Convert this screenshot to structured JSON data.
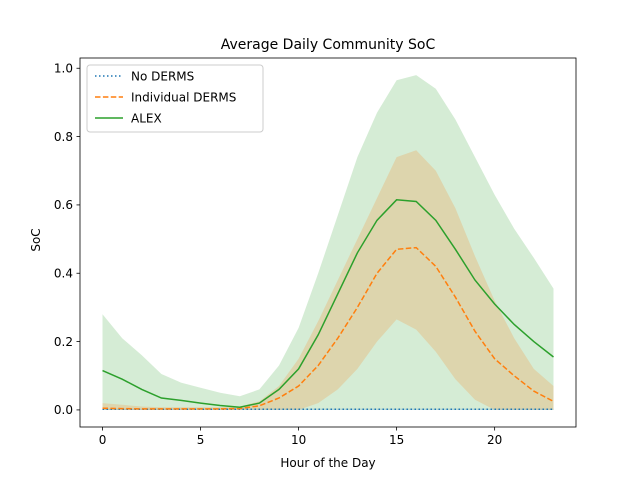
{
  "chart_data": {
    "type": "line",
    "title": "Average Daily Community SoC",
    "xlabel": "Hour of the Day",
    "ylabel": "SoC",
    "xlim": [
      -1.15,
      24.15
    ],
    "ylim": [
      -0.05,
      1.03
    ],
    "xticks": [
      0,
      5,
      10,
      15,
      20
    ],
    "xtick_labels": [
      "0",
      "5",
      "10",
      "15",
      "20"
    ],
    "yticks": [
      0.0,
      0.2,
      0.4,
      0.6,
      0.8,
      1.0
    ],
    "ytick_labels": [
      "0.0",
      "0.2",
      "0.4",
      "0.6",
      "0.8",
      "1.0"
    ],
    "legend_position": "top-left",
    "x": [
      0,
      1,
      2,
      3,
      4,
      5,
      6,
      7,
      8,
      9,
      10,
      11,
      12,
      13,
      14,
      15,
      16,
      17,
      18,
      19,
      20,
      21,
      22,
      23
    ],
    "series": [
      {
        "name": "No DERMS",
        "color": "#1f77b4",
        "style": "dotted",
        "values": [
          0.002,
          0.002,
          0.002,
          0.002,
          0.002,
          0.002,
          0.002,
          0.002,
          0.002,
          0.002,
          0.002,
          0.002,
          0.002,
          0.002,
          0.002,
          0.002,
          0.002,
          0.002,
          0.002,
          0.002,
          0.002,
          0.002,
          0.002,
          0.002
        ],
        "band_lower": [
          0,
          0,
          0,
          0,
          0,
          0,
          0,
          0,
          0,
          0,
          0,
          0,
          0,
          0,
          0,
          0,
          0,
          0,
          0,
          0,
          0,
          0,
          0,
          0
        ],
        "band_upper": [
          0.004,
          0.004,
          0.004,
          0.004,
          0.004,
          0.004,
          0.004,
          0.004,
          0.004,
          0.004,
          0.004,
          0.004,
          0.004,
          0.004,
          0.004,
          0.004,
          0.004,
          0.004,
          0.004,
          0.004,
          0.004,
          0.004,
          0.004,
          0.004
        ]
      },
      {
        "name": "Individual DERMS",
        "color": "#ff7f0e",
        "style": "dashed",
        "values": [
          0.005,
          0.004,
          0.003,
          0.003,
          0.003,
          0.003,
          0.003,
          0.004,
          0.012,
          0.035,
          0.07,
          0.13,
          0.21,
          0.3,
          0.4,
          0.47,
          0.475,
          0.42,
          0.33,
          0.23,
          0.15,
          0.1,
          0.055,
          0.025
        ],
        "band_lower": [
          0,
          0,
          0,
          0,
          0,
          0,
          0,
          0,
          0,
          0,
          0,
          0.02,
          0.06,
          0.12,
          0.2,
          0.265,
          0.235,
          0.17,
          0.09,
          0.03,
          0,
          0,
          0,
          0
        ],
        "band_upper": [
          0.02,
          0.015,
          0.01,
          0.008,
          0.008,
          0.008,
          0.008,
          0.01,
          0.025,
          0.07,
          0.15,
          0.26,
          0.38,
          0.5,
          0.62,
          0.74,
          0.76,
          0.7,
          0.59,
          0.45,
          0.32,
          0.21,
          0.12,
          0.07
        ]
      },
      {
        "name": "ALEX",
        "color": "#2ca02c",
        "style": "solid",
        "values": [
          0.115,
          0.09,
          0.06,
          0.035,
          0.028,
          0.02,
          0.013,
          0.008,
          0.02,
          0.06,
          0.12,
          0.22,
          0.34,
          0.46,
          0.555,
          0.615,
          0.61,
          0.555,
          0.47,
          0.38,
          0.31,
          0.25,
          0.2,
          0.155
        ],
        "band_lower": [
          0,
          0,
          0,
          0,
          0,
          0,
          0,
          0,
          0,
          0,
          0,
          0,
          0,
          0,
          0,
          0,
          0,
          0,
          0,
          0,
          0,
          0,
          0,
          0
        ],
        "band_upper": [
          0.28,
          0.21,
          0.16,
          0.105,
          0.08,
          0.065,
          0.05,
          0.04,
          0.06,
          0.13,
          0.24,
          0.4,
          0.57,
          0.74,
          0.87,
          0.965,
          0.98,
          0.94,
          0.85,
          0.74,
          0.63,
          0.53,
          0.445,
          0.355
        ]
      }
    ]
  }
}
